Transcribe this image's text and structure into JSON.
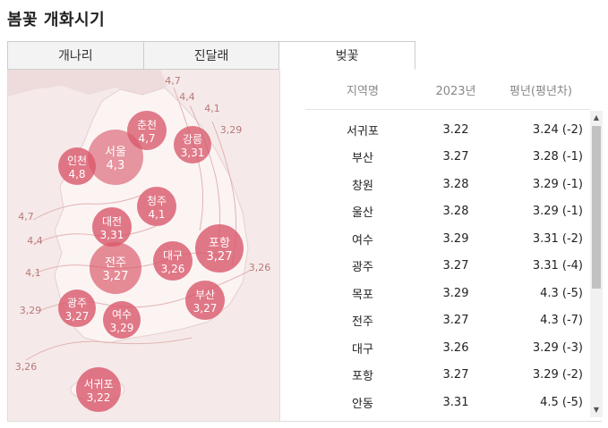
{
  "title": "봄꽃 개화시기",
  "tabs": [
    {
      "label": "개나리",
      "active": false
    },
    {
      "label": "진달래",
      "active": false
    },
    {
      "label": "벚꽃",
      "active": true
    }
  ],
  "map": {
    "cities": [
      {
        "name": "춘천",
        "value": "4,7"
      },
      {
        "name": "강릉",
        "value": "3,31"
      },
      {
        "name": "서울",
        "value": "4,3"
      },
      {
        "name": "인천",
        "value": "4,8"
      },
      {
        "name": "청주",
        "value": "4,1"
      },
      {
        "name": "대전",
        "value": "3,31"
      },
      {
        "name": "포항",
        "value": "3,27"
      },
      {
        "name": "대구",
        "value": "3,26"
      },
      {
        "name": "전주",
        "value": "3,27"
      },
      {
        "name": "부산",
        "value": "3,27"
      },
      {
        "name": "광주",
        "value": "3,27"
      },
      {
        "name": "여수",
        "value": "3,29"
      },
      {
        "name": "서귀포",
        "value": "3,22"
      }
    ],
    "edge_labels": [
      "4,7",
      "4,4",
      "4,1",
      "3,29",
      "4,7",
      "4,4",
      "4,1",
      "3,29",
      "3,26",
      "3,26"
    ]
  },
  "table": {
    "headers": {
      "region": "지역명",
      "year": "2023년",
      "avg": "평년(평년차)"
    },
    "rows": [
      {
        "region": "서귀포",
        "year": "3.22",
        "avg": "3.24 (-2)"
      },
      {
        "region": "부산",
        "year": "3.27",
        "avg": "3.28 (-1)"
      },
      {
        "region": "창원",
        "year": "3.28",
        "avg": "3.29 (-1)"
      },
      {
        "region": "울산",
        "year": "3.28",
        "avg": "3.29 (-1)"
      },
      {
        "region": "여수",
        "year": "3.29",
        "avg": "3.31 (-2)"
      },
      {
        "region": "광주",
        "year": "3.27",
        "avg": "3.31 (-4)"
      },
      {
        "region": "목포",
        "year": "3.29",
        "avg": "4.3 (-5)"
      },
      {
        "region": "전주",
        "year": "3.27",
        "avg": "4.3 (-7)"
      },
      {
        "region": "대구",
        "year": "3.26",
        "avg": "3.29 (-3)"
      },
      {
        "region": "포항",
        "year": "3.27",
        "avg": "3.29 (-2)"
      },
      {
        "region": "안동",
        "year": "3.31",
        "avg": "4.5 (-5)"
      }
    ]
  },
  "scrollbar": {
    "up_icon": "triangle-up-icon",
    "down_icon": "triangle-down-icon"
  }
}
